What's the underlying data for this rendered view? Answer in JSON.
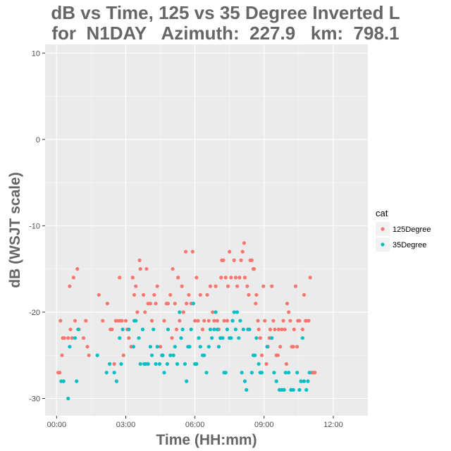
{
  "chart_data": {
    "type": "scatter",
    "title_line1": "dB vs Time, 125 vs 35 Degree Inverted L",
    "title_line2": "for  N1DAY   Azimuth:  227.9   km:  798.1",
    "xlabel": "Time (HH:mm)",
    "ylabel": "dB (WSJT scale)",
    "x_unit": "minutes after 00:00",
    "xlim": [
      -30,
      810
    ],
    "ylim": [
      -32,
      11
    ],
    "x_ticks": [
      {
        "value": 0,
        "label": "00:00"
      },
      {
        "value": 180,
        "label": "03:00"
      },
      {
        "value": 360,
        "label": "06:00"
      },
      {
        "value": 540,
        "label": "09:00"
      },
      {
        "value": 720,
        "label": "12:00"
      }
    ],
    "y_ticks": [
      {
        "value": 10,
        "label": "10"
      },
      {
        "value": 0,
        "label": "0"
      },
      {
        "value": -10,
        "label": "-10"
      },
      {
        "value": -20,
        "label": "-20"
      },
      {
        "value": -30,
        "label": "-30"
      }
    ],
    "grid": true,
    "legend": {
      "title": "cat",
      "position": "right"
    },
    "series": [
      {
        "name": "125Degree",
        "color": "#F8766D",
        "points": [
          [
            4,
            -27
          ],
          [
            8,
            -27
          ],
          [
            10,
            -21
          ],
          [
            14,
            -25
          ],
          [
            16,
            -23
          ],
          [
            20,
            -23
          ],
          [
            30,
            -23
          ],
          [
            34,
            -17
          ],
          [
            36,
            -22
          ],
          [
            40,
            -23
          ],
          [
            44,
            -16
          ],
          [
            48,
            -21
          ],
          [
            54,
            -15
          ],
          [
            58,
            -22
          ],
          [
            70,
            -23
          ],
          [
            76,
            -21
          ],
          [
            80,
            -24
          ],
          [
            84,
            -25
          ],
          [
            110,
            -18
          ],
          [
            120,
            -21
          ],
          [
            132,
            -19
          ],
          [
            140,
            -22
          ],
          [
            144,
            -22
          ],
          [
            150,
            -26
          ],
          [
            154,
            -21
          ],
          [
            160,
            -21
          ],
          [
            164,
            -16
          ],
          [
            166,
            -21
          ],
          [
            170,
            -21
          ],
          [
            174,
            -25
          ],
          [
            180,
            -21
          ],
          [
            184,
            -22
          ],
          [
            188,
            -23
          ],
          [
            194,
            -24
          ],
          [
            198,
            -16
          ],
          [
            202,
            -18
          ],
          [
            206,
            -17
          ],
          [
            210,
            -20
          ],
          [
            216,
            -14
          ],
          [
            218,
            -15
          ],
          [
            224,
            -22
          ],
          [
            226,
            -18
          ],
          [
            230,
            -20
          ],
          [
            234,
            -15
          ],
          [
            238,
            -19
          ],
          [
            244,
            -19
          ],
          [
            248,
            -21
          ],
          [
            254,
            -18
          ],
          [
            258,
            -19
          ],
          [
            262,
            -17
          ],
          [
            270,
            -24
          ],
          [
            276,
            -25
          ],
          [
            280,
            -21
          ],
          [
            286,
            -19
          ],
          [
            290,
            -19
          ],
          [
            296,
            -18
          ],
          [
            300,
            -23
          ],
          [
            302,
            -15
          ],
          [
            308,
            -19
          ],
          [
            312,
            -22
          ],
          [
            316,
            -16
          ],
          [
            320,
            -21
          ],
          [
            326,
            -17
          ],
          [
            330,
            -20
          ],
          [
            336,
            -13
          ],
          [
            338,
            -19
          ],
          [
            344,
            -18
          ],
          [
            350,
            -19
          ],
          [
            354,
            -13
          ],
          [
            360,
            -21
          ],
          [
            364,
            -16
          ],
          [
            368,
            -21
          ],
          [
            374,
            -18
          ],
          [
            380,
            -22
          ],
          [
            384,
            -21
          ],
          [
            392,
            -18
          ],
          [
            396,
            -21
          ],
          [
            400,
            -17
          ],
          [
            406,
            -20
          ],
          [
            410,
            -21
          ],
          [
            414,
            -17
          ],
          [
            418,
            -21
          ],
          [
            422,
            -22
          ],
          [
            428,
            -16
          ],
          [
            430,
            -14
          ],
          [
            434,
            -14
          ],
          [
            436,
            -21
          ],
          [
            440,
            -16
          ],
          [
            444,
            -21
          ],
          [
            446,
            -17
          ],
          [
            450,
            -13
          ],
          [
            454,
            -16
          ],
          [
            458,
            -21
          ],
          [
            462,
            -14
          ],
          [
            466,
            -16
          ],
          [
            470,
            -17
          ],
          [
            476,
            -16
          ],
          [
            480,
            -14
          ],
          [
            484,
            -13
          ],
          [
            488,
            -12
          ],
          [
            490,
            -16
          ],
          [
            496,
            -17
          ],
          [
            500,
            -18
          ],
          [
            504,
            -14
          ],
          [
            508,
            -14
          ],
          [
            512,
            -15
          ],
          [
            514,
            -15
          ],
          [
            518,
            -19
          ],
          [
            520,
            -18
          ],
          [
            524,
            -21
          ],
          [
            526,
            -22
          ],
          [
            530,
            -23
          ],
          [
            534,
            -25
          ],
          [
            538,
            -17
          ],
          [
            542,
            -21
          ],
          [
            546,
            -26
          ],
          [
            550,
            -24
          ],
          [
            554,
            -23
          ],
          [
            556,
            -22
          ],
          [
            560,
            -17
          ],
          [
            564,
            -21
          ],
          [
            568,
            -22
          ],
          [
            572,
            -25
          ],
          [
            576,
            -25
          ],
          [
            578,
            -22
          ],
          [
            582,
            -24
          ],
          [
            586,
            -22
          ],
          [
            590,
            -21
          ],
          [
            594,
            -22
          ],
          [
            598,
            -26
          ],
          [
            600,
            -19
          ],
          [
            604,
            -20
          ],
          [
            608,
            -21
          ],
          [
            612,
            -24
          ],
          [
            616,
            -24
          ],
          [
            618,
            -22
          ],
          [
            622,
            -17
          ],
          [
            626,
            -24
          ],
          [
            628,
            -21
          ],
          [
            632,
            -21
          ],
          [
            636,
            -28
          ],
          [
            640,
            -22
          ],
          [
            644,
            -18
          ],
          [
            648,
            -21
          ],
          [
            650,
            -21
          ],
          [
            656,
            -21
          ],
          [
            660,
            -16
          ],
          [
            664,
            -27
          ],
          [
            668,
            -27
          ],
          [
            672,
            -27
          ]
        ]
      },
      {
        "name": "35Degree",
        "color": "#00BFC4",
        "points": [
          [
            12,
            -28
          ],
          [
            18,
            -28
          ],
          [
            30,
            -30
          ],
          [
            34,
            -24
          ],
          [
            48,
            -23
          ],
          [
            52,
            -28
          ],
          [
            56,
            -22
          ],
          [
            106,
            -25
          ],
          [
            130,
            -27
          ],
          [
            138,
            -26
          ],
          [
            150,
            -27
          ],
          [
            156,
            -28
          ],
          [
            164,
            -23
          ],
          [
            168,
            -26
          ],
          [
            172,
            -22
          ],
          [
            188,
            -22
          ],
          [
            200,
            -24
          ],
          [
            202,
            -21
          ],
          [
            206,
            -21
          ],
          [
            214,
            -23
          ],
          [
            218,
            -26
          ],
          [
            224,
            -22
          ],
          [
            228,
            -26
          ],
          [
            232,
            -26
          ],
          [
            238,
            -26
          ],
          [
            244,
            -24
          ],
          [
            248,
            -25
          ],
          [
            252,
            -22
          ],
          [
            258,
            -26
          ],
          [
            262,
            -24
          ],
          [
            268,
            -26
          ],
          [
            274,
            -25
          ],
          [
            276,
            -25
          ],
          [
            280,
            -27
          ],
          [
            288,
            -26
          ],
          [
            290,
            -22
          ],
          [
            296,
            -25
          ],
          [
            304,
            -25
          ],
          [
            308,
            -24
          ],
          [
            314,
            -26
          ],
          [
            320,
            -20
          ],
          [
            324,
            -23
          ],
          [
            328,
            -22
          ],
          [
            334,
            -26
          ],
          [
            338,
            -28
          ],
          [
            342,
            -24
          ],
          [
            346,
            -24
          ],
          [
            350,
            -22
          ],
          [
            356,
            -19
          ],
          [
            360,
            -26
          ],
          [
            364,
            -26
          ],
          [
            370,
            -23
          ],
          [
            374,
            -24
          ],
          [
            380,
            -25
          ],
          [
            384,
            -25
          ],
          [
            390,
            -27
          ],
          [
            396,
            -24
          ],
          [
            400,
            -22
          ],
          [
            404,
            -23
          ],
          [
            410,
            -22
          ],
          [
            414,
            -20
          ],
          [
            418,
            -22
          ],
          [
            422,
            -24
          ],
          [
            426,
            -23
          ],
          [
            432,
            -23
          ],
          [
            436,
            -27
          ],
          [
            440,
            -27
          ],
          [
            444,
            -22
          ],
          [
            450,
            -23
          ],
          [
            454,
            -23
          ],
          [
            458,
            -21
          ],
          [
            462,
            -20
          ],
          [
            466,
            -22
          ],
          [
            470,
            -20
          ],
          [
            474,
            -23
          ],
          [
            478,
            -21
          ],
          [
            482,
            -27
          ],
          [
            486,
            -22
          ],
          [
            490,
            -28
          ],
          [
            494,
            -29
          ],
          [
            498,
            -22
          ],
          [
            502,
            -22
          ],
          [
            508,
            -27
          ],
          [
            512,
            -25
          ],
          [
            516,
            -25
          ],
          [
            520,
            -23
          ],
          [
            526,
            -26
          ],
          [
            530,
            -27
          ],
          [
            534,
            -27
          ],
          [
            548,
            -24
          ],
          [
            560,
            -23
          ],
          [
            566,
            -27
          ],
          [
            572,
            -28
          ],
          [
            580,
            -29
          ],
          [
            586,
            -29
          ],
          [
            592,
            -29
          ],
          [
            596,
            -27
          ],
          [
            604,
            -27
          ],
          [
            610,
            -29
          ],
          [
            616,
            -29
          ],
          [
            626,
            -27
          ],
          [
            632,
            -29
          ],
          [
            636,
            -28
          ],
          [
            640,
            -23
          ],
          [
            644,
            -28
          ],
          [
            650,
            -29
          ],
          [
            654,
            -28
          ],
          [
            658,
            -27
          ]
        ]
      }
    ]
  },
  "colors": {
    "panel_bg": "#EBEBEB",
    "grid_major": "#FFFFFF",
    "series_125": "#F8766D",
    "series_35": "#00BFC4"
  }
}
